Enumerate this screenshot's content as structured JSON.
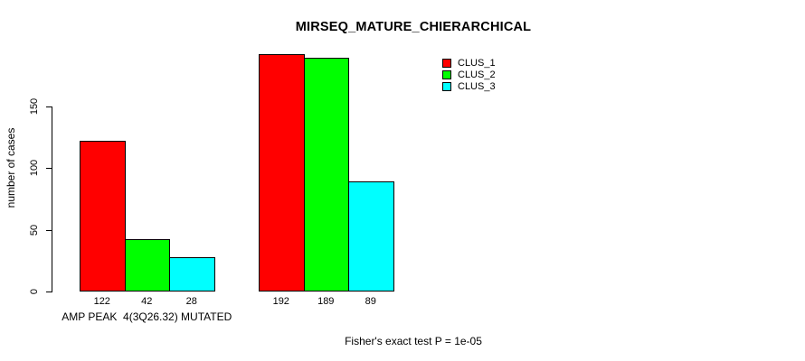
{
  "chart_data": {
    "type": "bar",
    "title": "MIRSEQ_MATURE_CHIERARCHICAL",
    "ylabel": "number of cases",
    "xlabel": "",
    "yticks": [
      0,
      50,
      100,
      150
    ],
    "ylim": [
      0,
      200
    ],
    "grid": false,
    "legend_position": "top-right",
    "categories": [
      "AMP PEAK  4(3Q26.32) MUTATED",
      ""
    ],
    "series": [
      {
        "name": "CLUS_1",
        "color": "#ff0000",
        "values": [
          122,
          192
        ]
      },
      {
        "name": "CLUS_2",
        "color": "#00ff00",
        "values": [
          42,
          189
        ]
      },
      {
        "name": "CLUS_3",
        "color": "#00ffff",
        "values": [
          28,
          89
        ]
      }
    ],
    "bar_value_labels": [
      [
        122,
        42,
        28
      ],
      [
        192,
        189,
        89
      ]
    ],
    "annotation": "Fisher's exact test P = 1e-05"
  },
  "colors": {
    "background": "#ffffff",
    "axis": "#000000",
    "text": "#000000",
    "bar_border": "#000000"
  }
}
